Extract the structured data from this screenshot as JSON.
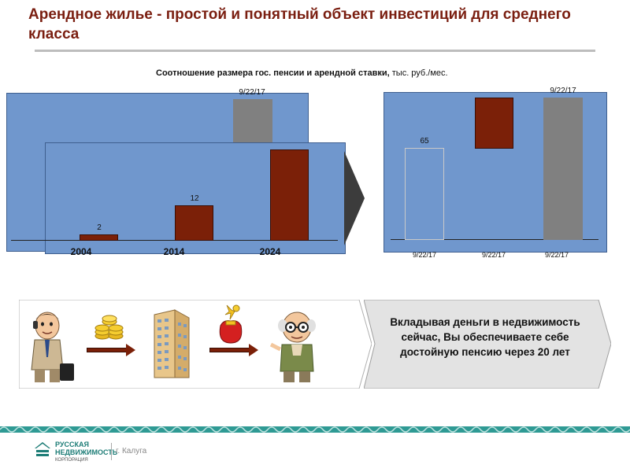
{
  "slide": {
    "title": "Арендное жилье - простой и понятный объект инвестиций для среднего класса",
    "subtitle_bold": "Соотношение размера гос. пенсии и арендной ставки,",
    "subtitle_units": " тыс. руб./мес."
  },
  "chart_data": [
    {
      "type": "bar",
      "panel": "back",
      "bars": [
        {
          "label": "",
          "color": "#808080",
          "value_label": "9/22/17"
        }
      ]
    },
    {
      "type": "bar",
      "panel": "front",
      "categories": [
        "2004",
        "2014",
        "2024"
      ],
      "values": [
        2,
        12,
        null
      ],
      "value_labels": [
        "2",
        "12",
        ""
      ],
      "color": "#7b2008"
    },
    {
      "type": "bar",
      "panel": "right",
      "categories": [
        "9/22/17",
        "9/22/17",
        "9/22/17"
      ],
      "value_labels": [
        "65",
        "",
        "9/22/17"
      ]
    }
  ],
  "callout": {
    "text": "Вкладывая деньги в недвижимость сейчас, Вы обеспечиваете себе достойную пенсию через 20 лет"
  },
  "footer": {
    "logo_line1": "РУССКАЯ",
    "logo_line2": "НЕДВИЖИМОСТЬ",
    "logo_line3": "КОРПОРАЦИЯ",
    "city": "г. Калуга"
  },
  "icons": [
    "businessman-with-phone-icon",
    "gold-coins-icon",
    "apartment-building-icon",
    "money-bag-icon",
    "elderly-man-icon"
  ]
}
